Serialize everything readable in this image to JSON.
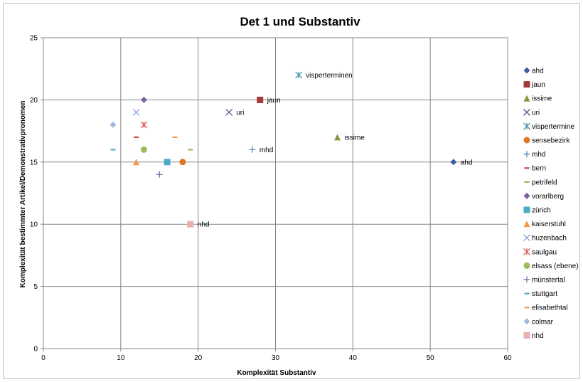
{
  "chart_data": {
    "type": "scatter",
    "title": "Det 1 und Substantiv",
    "xlabel": "Komplexität Substantiv",
    "ylabel": "Komplexität bestimmter Artikel/Demonstrativpronomen",
    "xlim": [
      0,
      60
    ],
    "ylim": [
      0,
      25
    ],
    "xticks": [
      0,
      10,
      20,
      30,
      40,
      50,
      60
    ],
    "yticks": [
      0,
      5,
      10,
      15,
      20,
      25
    ],
    "grid": true,
    "legend_position": "right",
    "series": [
      {
        "name": "ahd",
        "x": 53,
        "y": 15,
        "marker": "diamond",
        "color": "#3F5F9F",
        "label": "ahd"
      },
      {
        "name": "jaun",
        "x": 28,
        "y": 20,
        "marker": "square",
        "color": "#A33A38",
        "label": "jaun"
      },
      {
        "name": "issime",
        "x": 38,
        "y": 17,
        "marker": "triangle",
        "color": "#7F9A3F",
        "label": "issime"
      },
      {
        "name": "uri",
        "x": 24,
        "y": 19,
        "marker": "x",
        "color": "#4F3F7F",
        "label": "uri"
      },
      {
        "name": "vispertermine",
        "x": 33,
        "y": 22,
        "marker": "star",
        "color": "#3F8FA3",
        "label": "visperterminen"
      },
      {
        "name": "sensebezirk",
        "x": 18,
        "y": 15,
        "marker": "circle",
        "color": "#D9772B",
        "label": ""
      },
      {
        "name": "mhd",
        "x": 27,
        "y": 16,
        "marker": "plus",
        "color": "#4A7EBB",
        "label": "mhd"
      },
      {
        "name": "bern",
        "x": 12,
        "y": 17,
        "marker": "dash",
        "color": "#BE4B48",
        "label": ""
      },
      {
        "name": "petrifeld",
        "x": 19,
        "y": 16,
        "marker": "dash",
        "color": "#98B954",
        "label": ""
      },
      {
        "name": "vorarlberg",
        "x": 13,
        "y": 20,
        "marker": "diamond",
        "color": "#7D5FA0",
        "label": ""
      },
      {
        "name": "zürich",
        "x": 16,
        "y": 15,
        "marker": "square",
        "color": "#4BACC6",
        "label": ""
      },
      {
        "name": "kaiserstuhl",
        "x": 12,
        "y": 15,
        "marker": "triangle",
        "color": "#F79646",
        "label": ""
      },
      {
        "name": "huzenbach",
        "x": 12,
        "y": 19,
        "marker": "x",
        "color": "#7F9CD5",
        "label": ""
      },
      {
        "name": "saulgau",
        "x": 13,
        "y": 18,
        "marker": "star",
        "color": "#D9534F",
        "label": ""
      },
      {
        "name": "elsass (ebene)",
        "x": 13,
        "y": 16,
        "marker": "circle",
        "color": "#9BBB59",
        "label": ""
      },
      {
        "name": "münstertal",
        "x": 15,
        "y": 14,
        "marker": "plus",
        "color": "#8064A2",
        "label": ""
      },
      {
        "name": "stuttgart",
        "x": 9,
        "y": 16,
        "marker": "dash",
        "color": "#4BACC6",
        "label": ""
      },
      {
        "name": "elisabethtal",
        "x": 17,
        "y": 17,
        "marker": "dash",
        "color": "#F79646",
        "label": ""
      },
      {
        "name": "colmar",
        "x": 9,
        "y": 18,
        "marker": "diamond",
        "color": "#A6B9E0",
        "label": ""
      },
      {
        "name": "nhd",
        "x": 19,
        "y": 10,
        "marker": "square",
        "color": "#E6B0B0",
        "label": "nhd"
      }
    ]
  }
}
